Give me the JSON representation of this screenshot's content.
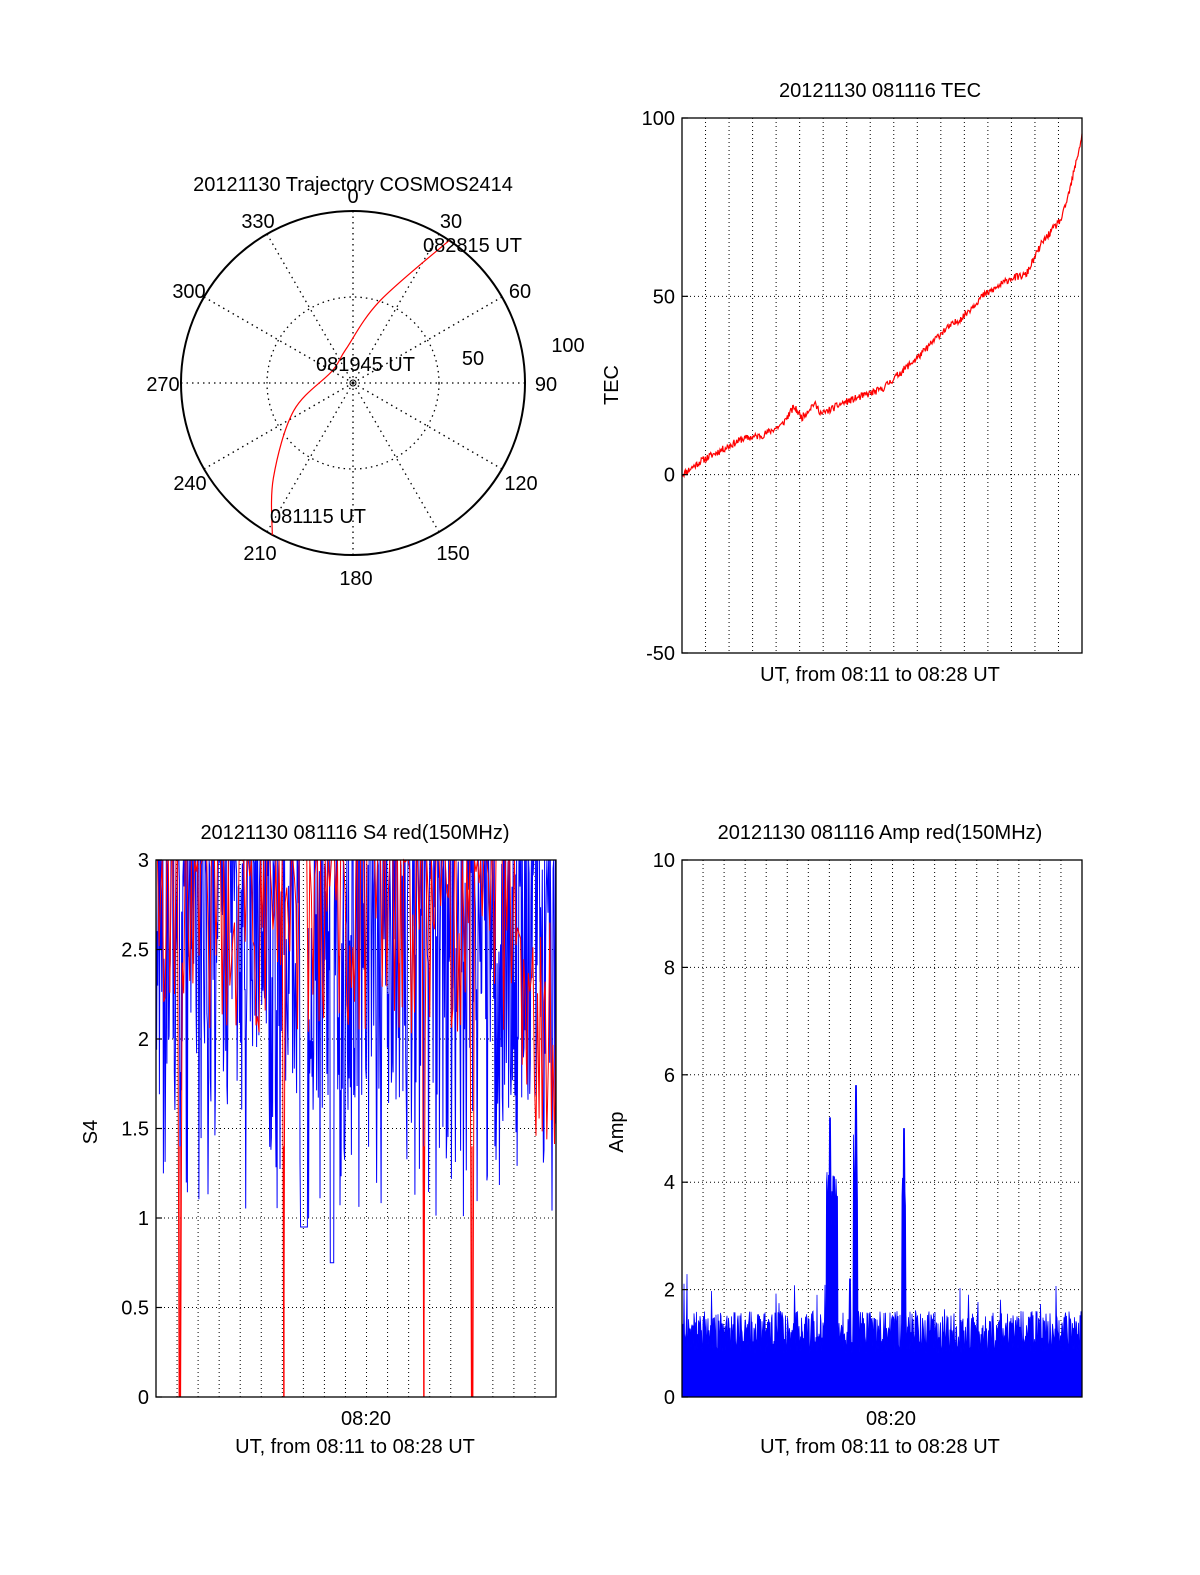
{
  "chart_data": [
    {
      "type": "polar",
      "title": "20121130 Trajectory COSMOS2414",
      "azimuth_labels": [
        "0",
        "30",
        "60",
        "90",
        "120",
        "150",
        "180",
        "210",
        "240",
        "270",
        "300",
        "330"
      ],
      "radius_labels": [
        "50",
        "100"
      ],
      "time_labels": [
        "082815 UT",
        "081945 UT",
        "081115 UT"
      ],
      "trajectory": {
        "color": "#ff0000",
        "points": [
          {
            "azimuth": 208,
            "radius": 100
          },
          {
            "azimuth": 220,
            "radius": 72
          },
          {
            "azimuth": 245,
            "radius": 38
          },
          {
            "azimuth": 300,
            "radius": 14
          },
          {
            "azimuth": 348,
            "radius": 20
          },
          {
            "azimuth": 18,
            "radius": 50
          },
          {
            "azimuth": 34,
            "radius": 100
          }
        ]
      }
    },
    {
      "type": "line",
      "title": "20121130 081116 TEC",
      "ylabel": "TEC",
      "xlabel": "UT, from 08:11 to 08:28 UT",
      "ylim": [
        -50,
        100
      ],
      "yticks": [
        "-50",
        "0",
        "50",
        "100"
      ],
      "grid": true,
      "series": [
        {
          "color": "#ff0000",
          "x": [
            0,
            0.05,
            0.1,
            0.15,
            0.2,
            0.25,
            0.28,
            0.3,
            0.33,
            0.35,
            0.4,
            0.45,
            0.5,
            0.55,
            0.6,
            0.65,
            0.7,
            0.75,
            0.78,
            0.82,
            0.86,
            0.9,
            0.95,
            0.97,
            1.0
          ],
          "values": [
            0,
            4,
            7,
            10,
            11,
            14,
            19,
            16,
            20,
            17,
            20,
            22,
            24,
            29,
            34,
            40,
            44,
            50,
            52,
            55,
            56,
            65,
            72,
            80,
            95
          ]
        }
      ]
    },
    {
      "type": "line",
      "title": "20121130 081116 S4 red(150MHz)",
      "ylabel": "S4",
      "xlabel": "UT, from 08:11 to 08:28 UT",
      "xtick_label": "08:20",
      "ylim": [
        0,
        3
      ],
      "yticks": [
        "0",
        "0.5",
        "1",
        "1.5",
        "2",
        "2.5",
        "3"
      ],
      "grid": true,
      "series": [
        {
          "color": "#0000ff",
          "note": "noisy S4 trace, values mostly between 1.2 and 3"
        },
        {
          "color": "#ff0000",
          "note": "noisy S4 trace with drop-outs to 0"
        }
      ]
    },
    {
      "type": "line",
      "title": "20121130 081116 Amp red(150MHz)",
      "ylabel": "Amp",
      "xlabel": "UT, from 08:11 to 08:28 UT",
      "xtick_label": "08:20",
      "ylim": [
        0,
        10
      ],
      "yticks": [
        "0",
        "2",
        "4",
        "6",
        "8",
        "10"
      ],
      "grid": true,
      "series": [
        {
          "color": "#0000ff",
          "baseline_range": [
            0.8,
            1.6
          ],
          "peaks": [
            {
              "x": 0.37,
              "value": 5.2
            },
            {
              "x": 0.38,
              "value": 4.1
            },
            {
              "x": 0.42,
              "value": 2.2
            },
            {
              "x": 0.435,
              "value": 5.8
            },
            {
              "x": 0.555,
              "value": 5.0
            }
          ]
        }
      ]
    }
  ]
}
